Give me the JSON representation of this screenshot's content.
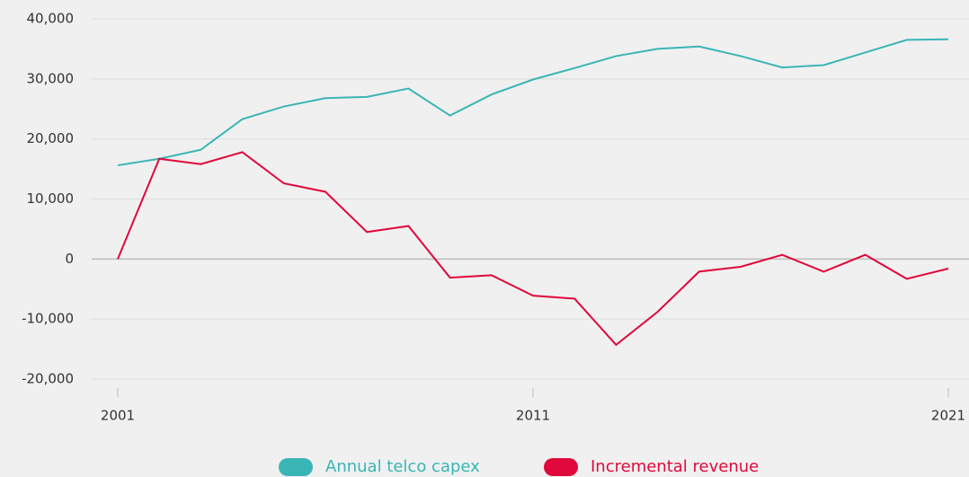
{
  "chart_data": {
    "type": "line",
    "x": [
      2001,
      2002,
      2003,
      2004,
      2005,
      2006,
      2007,
      2008,
      2009,
      2010,
      2011,
      2012,
      2013,
      2014,
      2015,
      2016,
      2017,
      2018,
      2019,
      2020,
      2021
    ],
    "series": [
      {
        "name": "Annual telco capex",
        "color": "#3ab5b5",
        "values": [
          15600,
          16700,
          18200,
          23300,
          25400,
          26800,
          27000,
          28400,
          23900,
          27400,
          29900,
          31800,
          33800,
          35000,
          35400,
          33800,
          31900,
          32300,
          34400,
          36500,
          36600
        ]
      },
      {
        "name": "Incremental revenue",
        "color": "#e0073b",
        "values": [
          0,
          16700,
          15800,
          17800,
          12600,
          11200,
          4500,
          5500,
          -3100,
          -2700,
          -6100,
          -6600,
          -14300,
          -8800,
          -2100,
          -1300,
          700,
          -2100,
          700,
          -3300,
          -1600
        ]
      }
    ],
    "xlim": [
      2001,
      2021
    ],
    "xticks": [
      2001,
      2011,
      2021
    ],
    "ylim": [
      -20000,
      40000
    ],
    "yticks": [
      {
        "value": -20000,
        "label": "-20,000"
      },
      {
        "value": -10000,
        "label": "-10,000"
      },
      0,
      {
        "value": 10000,
        "label": "10,000"
      },
      {
        "value": 20000,
        "label": "20,000"
      },
      {
        "value": 30000,
        "label": "30,000"
      },
      {
        "value": 40000,
        "label": "40,000"
      }
    ],
    "grid": true,
    "legend": "bottom"
  }
}
